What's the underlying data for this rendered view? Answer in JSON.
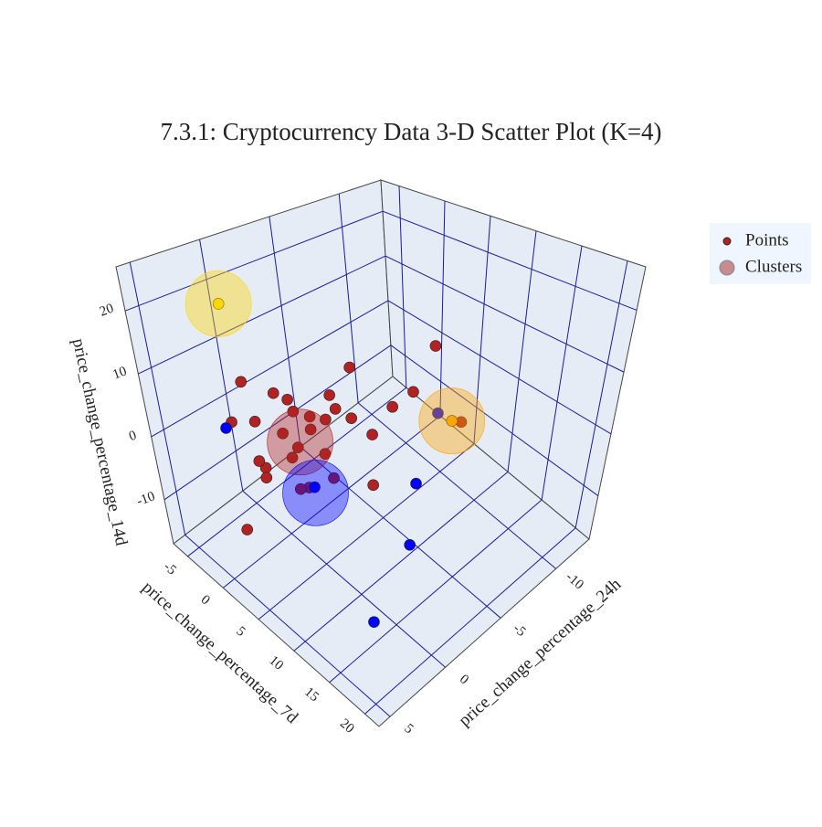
{
  "chart_data": {
    "type": "scatter3d",
    "title": "7.3.1: Cryptocurrency Data 3-D Scatter Plot (K=4)",
    "x_label": "price_change_percentage_7d",
    "y_label": "price_change_percentage_24h",
    "z_label": "price_change_percentage_14d",
    "xlim": [
      -7,
      22
    ],
    "xticks": [
      -5,
      0,
      5,
      10,
      15,
      20
    ],
    "ylim": [
      -13,
      6
    ],
    "yticks": [
      -10,
      -5,
      0,
      5
    ],
    "zlim": [
      -17,
      27
    ],
    "zticks": [
      -10,
      0,
      10,
      20
    ],
    "legend_position": "upper right",
    "series": [
      {
        "name": "Points",
        "color": "#b22222",
        "x": [
          2,
          4,
          1,
          5,
          3,
          6,
          0,
          2,
          7,
          4,
          3,
          1,
          5,
          8,
          2,
          6,
          9,
          3,
          4,
          -1,
          10,
          5,
          2,
          6,
          12,
          1,
          4,
          3,
          7,
          -3,
          4,
          8,
          -2,
          12,
          15,
          6,
          -2.5,
          10.4
        ],
        "y": [
          1,
          0,
          2,
          -1,
          0.5,
          -2,
          1.5,
          3,
          -3,
          -1,
          2,
          -0.5,
          1,
          -4,
          0,
          -2,
          -5,
          1,
          0,
          2,
          -6,
          -1,
          3,
          0,
          -7,
          4,
          -2,
          1,
          -3,
          2,
          0,
          -6,
          3,
          -3,
          2,
          -9,
          2,
          -7.3
        ],
        "z": [
          2,
          5,
          -3,
          8,
          0,
          4,
          -6,
          6,
          1,
          -2,
          10,
          3,
          -4,
          5,
          -8,
          12,
          7,
          -1,
          3,
          9,
          14,
          -5,
          0,
          6,
          2,
          -10,
          4,
          8,
          -7,
          1,
          -6,
          -10,
          2,
          -12,
          -14,
          -4,
          20.5,
          0.6
        ],
        "colors": [
          "#b22222",
          "#b22222",
          "#b22222",
          "#b22222",
          "#b22222",
          "#b22222",
          "#b22222",
          "#b22222",
          "#b22222",
          "#b22222",
          "#b22222",
          "#b22222",
          "#b22222",
          "#b22222",
          "#b22222",
          "#b22222",
          "#b22222",
          "#b22222",
          "#b22222",
          "#b22222",
          "#b22222",
          "#b22222",
          "#b22222",
          "#b22222",
          "#b22222",
          "#b22222",
          "#b22222",
          "#b22222",
          "#b22222",
          "#b22222",
          "#0000ff",
          "#0000ff",
          "#0000ff",
          "#0000ff",
          "#0000ff",
          "#0000ff",
          "#ffd700",
          "#ffa500"
        ]
      },
      {
        "name": "Clusters",
        "color": "#c98b8b",
        "x": [
          3,
          4.6,
          -2.5,
          10.4
        ],
        "y": [
          0.3,
          0.3,
          2,
          -7.3
        ],
        "z": [
          0.6,
          -6,
          20.5,
          0.6
        ],
        "colors": [
          "#b22222",
          "#0000ff",
          "#ffd700",
          "#ffa500"
        ]
      }
    ]
  }
}
